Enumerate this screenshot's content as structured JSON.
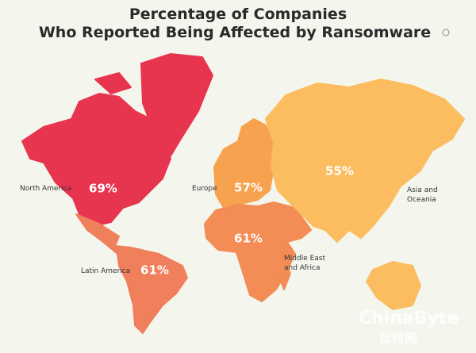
{
  "chart_data": {
    "type": "map",
    "title": [
      "Percentage of Companies",
      "Who Reported Being Affected by Ransomware"
    ],
    "categories": [
      "North America",
      "Europe",
      "Latin America",
      "Middle East and Africa",
      "Asia and Oceania"
    ],
    "values": [
      69,
      57,
      61,
      61,
      55
    ],
    "value_labels": [
      "69%",
      "57%",
      "61%",
      "61%",
      "55%"
    ],
    "colors": [
      "#e8354f",
      "#f7a24e",
      "#f07f5c",
      "#f38c55",
      "#fbbd5f"
    ],
    "watermark": [
      "ChinaByte",
      "比特网"
    ]
  }
}
